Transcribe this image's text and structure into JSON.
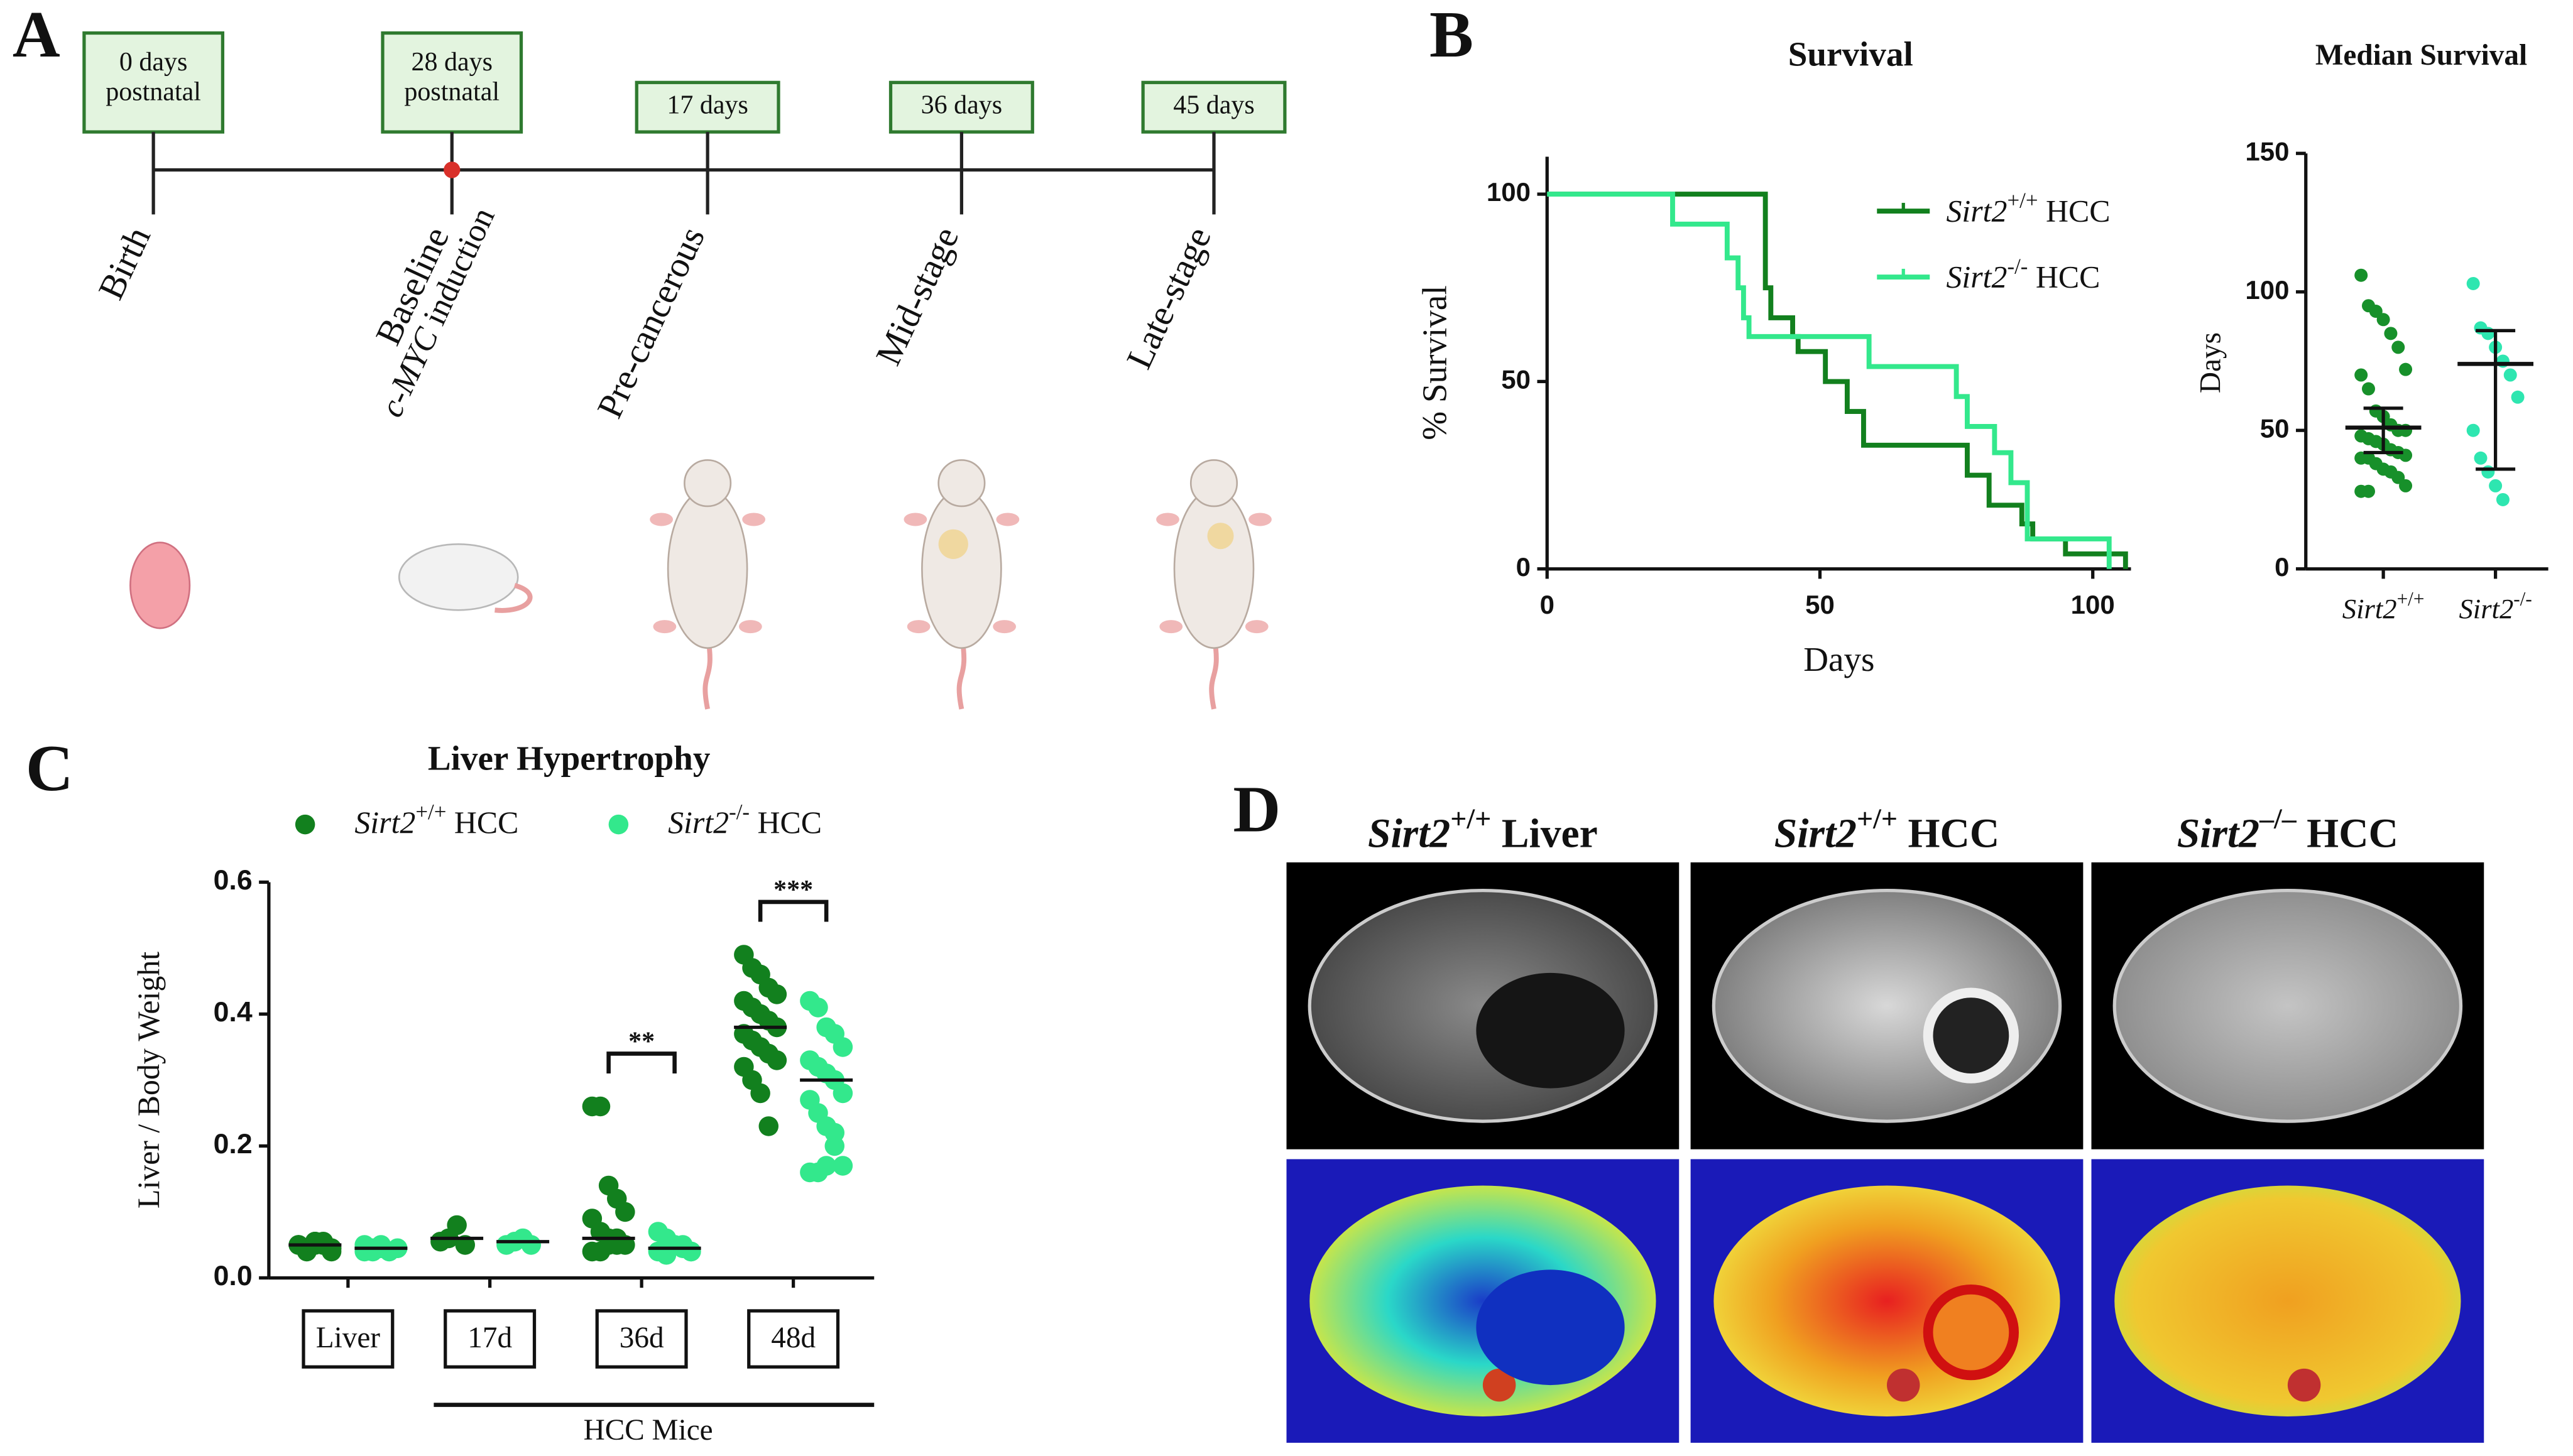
{
  "panel_labels": [
    "A",
    "B",
    "C",
    "D"
  ],
  "timeline": {
    "boxes": [
      [
        "0 days",
        "postnatal"
      ],
      [
        "28 days",
        "postnatal"
      ],
      [
        "17 days"
      ],
      [
        "36 days"
      ],
      [
        "45 days"
      ]
    ],
    "stages": [
      "Birth",
      "Baseline",
      "Pre-cancerous",
      "Mid-stage",
      "Late-stage"
    ],
    "induction": "c-MYC induction"
  },
  "chart_data": [
    {
      "type": "step",
      "title": "Survival",
      "xlabel": "Days",
      "ylabel": "% Survival",
      "xlim": [
        0,
        107
      ],
      "ylim": [
        0,
        110
      ],
      "xticks": [
        0,
        50,
        100
      ],
      "yticks": [
        0,
        50,
        100
      ],
      "series": [
        {
          "name": "Sirt2+/+ HCC",
          "color": "#12801e",
          "x": [
            0,
            40,
            41,
            45,
            46,
            51,
            55,
            58,
            77,
            81,
            87,
            89,
            95,
            106
          ],
          "values": [
            100,
            75,
            67,
            62,
            58,
            50,
            42,
            33,
            25,
            17,
            12,
            8,
            4,
            0
          ]
        },
        {
          "name": "Sirt2-/- HCC",
          "color": "#33e88c",
          "x": [
            0,
            23,
            33,
            35,
            36,
            37,
            59,
            75,
            77,
            82,
            85,
            88,
            103
          ],
          "values": [
            100,
            92,
            83,
            75,
            67,
            62,
            54,
            46,
            38,
            31,
            23,
            8,
            0
          ]
        }
      ]
    },
    {
      "type": "strip",
      "title": "Median Survival",
      "ylabel": "Days",
      "ylim": [
        0,
        150
      ],
      "yticks": [
        0,
        50,
        100,
        150
      ],
      "categories": [
        "Sirt2+/+",
        "Sirt2-/-"
      ],
      "colors": [
        "#17902a",
        "#2ee6b0"
      ],
      "values": [
        [
          106,
          95,
          93,
          90,
          85,
          80,
          72,
          70,
          65,
          57,
          55,
          52,
          50,
          50,
          48,
          47,
          46,
          45,
          43,
          42,
          41,
          40,
          40,
          38,
          36,
          35,
          33,
          30,
          28,
          28
        ],
        [
          103,
          87,
          85,
          80,
          75,
          70,
          62,
          50,
          40,
          35,
          30,
          25
        ]
      ],
      "medians": [
        51,
        74
      ],
      "errors": [
        [
          42,
          58
        ],
        [
          36,
          86
        ]
      ]
    },
    {
      "type": "grouped-strip",
      "title": "Liver Hypertrophy",
      "ylabel": "Liver / Body Weight",
      "ylim": [
        0,
        0.6
      ],
      "yticks": [
        {
          "value": 0,
          "label": "0.0"
        },
        {
          "value": 0.2,
          "label": "0.2"
        },
        {
          "value": 0.4,
          "label": "0.4"
        },
        {
          "value": 0.6,
          "label": "0.6"
        }
      ],
      "categories": [
        "Liver",
        "17d",
        "36d",
        "48d"
      ],
      "group_label": "HCC Mice",
      "series": [
        {
          "name": "Sirt2+/+ HCC",
          "color": "#12801e",
          "values": [
            [
              0.05,
              0.045,
              0.055,
              0.05,
              0.04,
              0.05,
              0.045,
              0.055,
              0.05,
              0.045,
              0.05,
              0.04,
              0.05,
              0.055,
              0.045
            ],
            [
              0.055,
              0.06,
              0.08,
              0.05
            ],
            [
              0.26,
              0.26,
              0.14,
              0.12,
              0.1,
              0.09,
              0.07,
              0.06,
              0.05,
              0.05,
              0.04,
              0.04,
              0.05,
              0.06
            ],
            [
              0.49,
              0.47,
              0.46,
              0.44,
              0.43,
              0.42,
              0.41,
              0.4,
              0.39,
              0.38,
              0.37,
              0.36,
              0.35,
              0.34,
              0.33,
              0.32,
              0.3,
              0.28,
              0.23
            ]
          ],
          "medians": [
            0.05,
            0.06,
            0.06,
            0.38
          ]
        },
        {
          "name": "Sirt2-/- HCC",
          "color": "#33e88c",
          "values": [
            [
              0.04,
              0.045,
              0.05,
              0.04,
              0.045,
              0.05,
              0.04,
              0.045
            ],
            [
              0.05,
              0.055,
              0.06,
              0.05
            ],
            [
              0.07,
              0.06,
              0.05,
              0.05,
              0.04,
              0.04,
              0.035,
              0.05,
              0.045,
              0.04
            ],
            [
              0.42,
              0.41,
              0.38,
              0.37,
              0.35,
              0.33,
              0.32,
              0.31,
              0.3,
              0.28,
              0.27,
              0.25,
              0.23,
              0.2,
              0.17,
              0.16,
              0.16,
              0.17,
              0.22
            ]
          ],
          "medians": [
            0.045,
            0.055,
            0.045,
            0.3
          ]
        }
      ],
      "annotations": [
        {
          "label": "**",
          "category": "36d"
        },
        {
          "label": "***",
          "category": "48d"
        }
      ]
    }
  ],
  "mri": {
    "titles": [
      "Sirt2+/+ Liver",
      "Sirt2+/+ HCC",
      "Sirt2–/– HCC"
    ]
  }
}
